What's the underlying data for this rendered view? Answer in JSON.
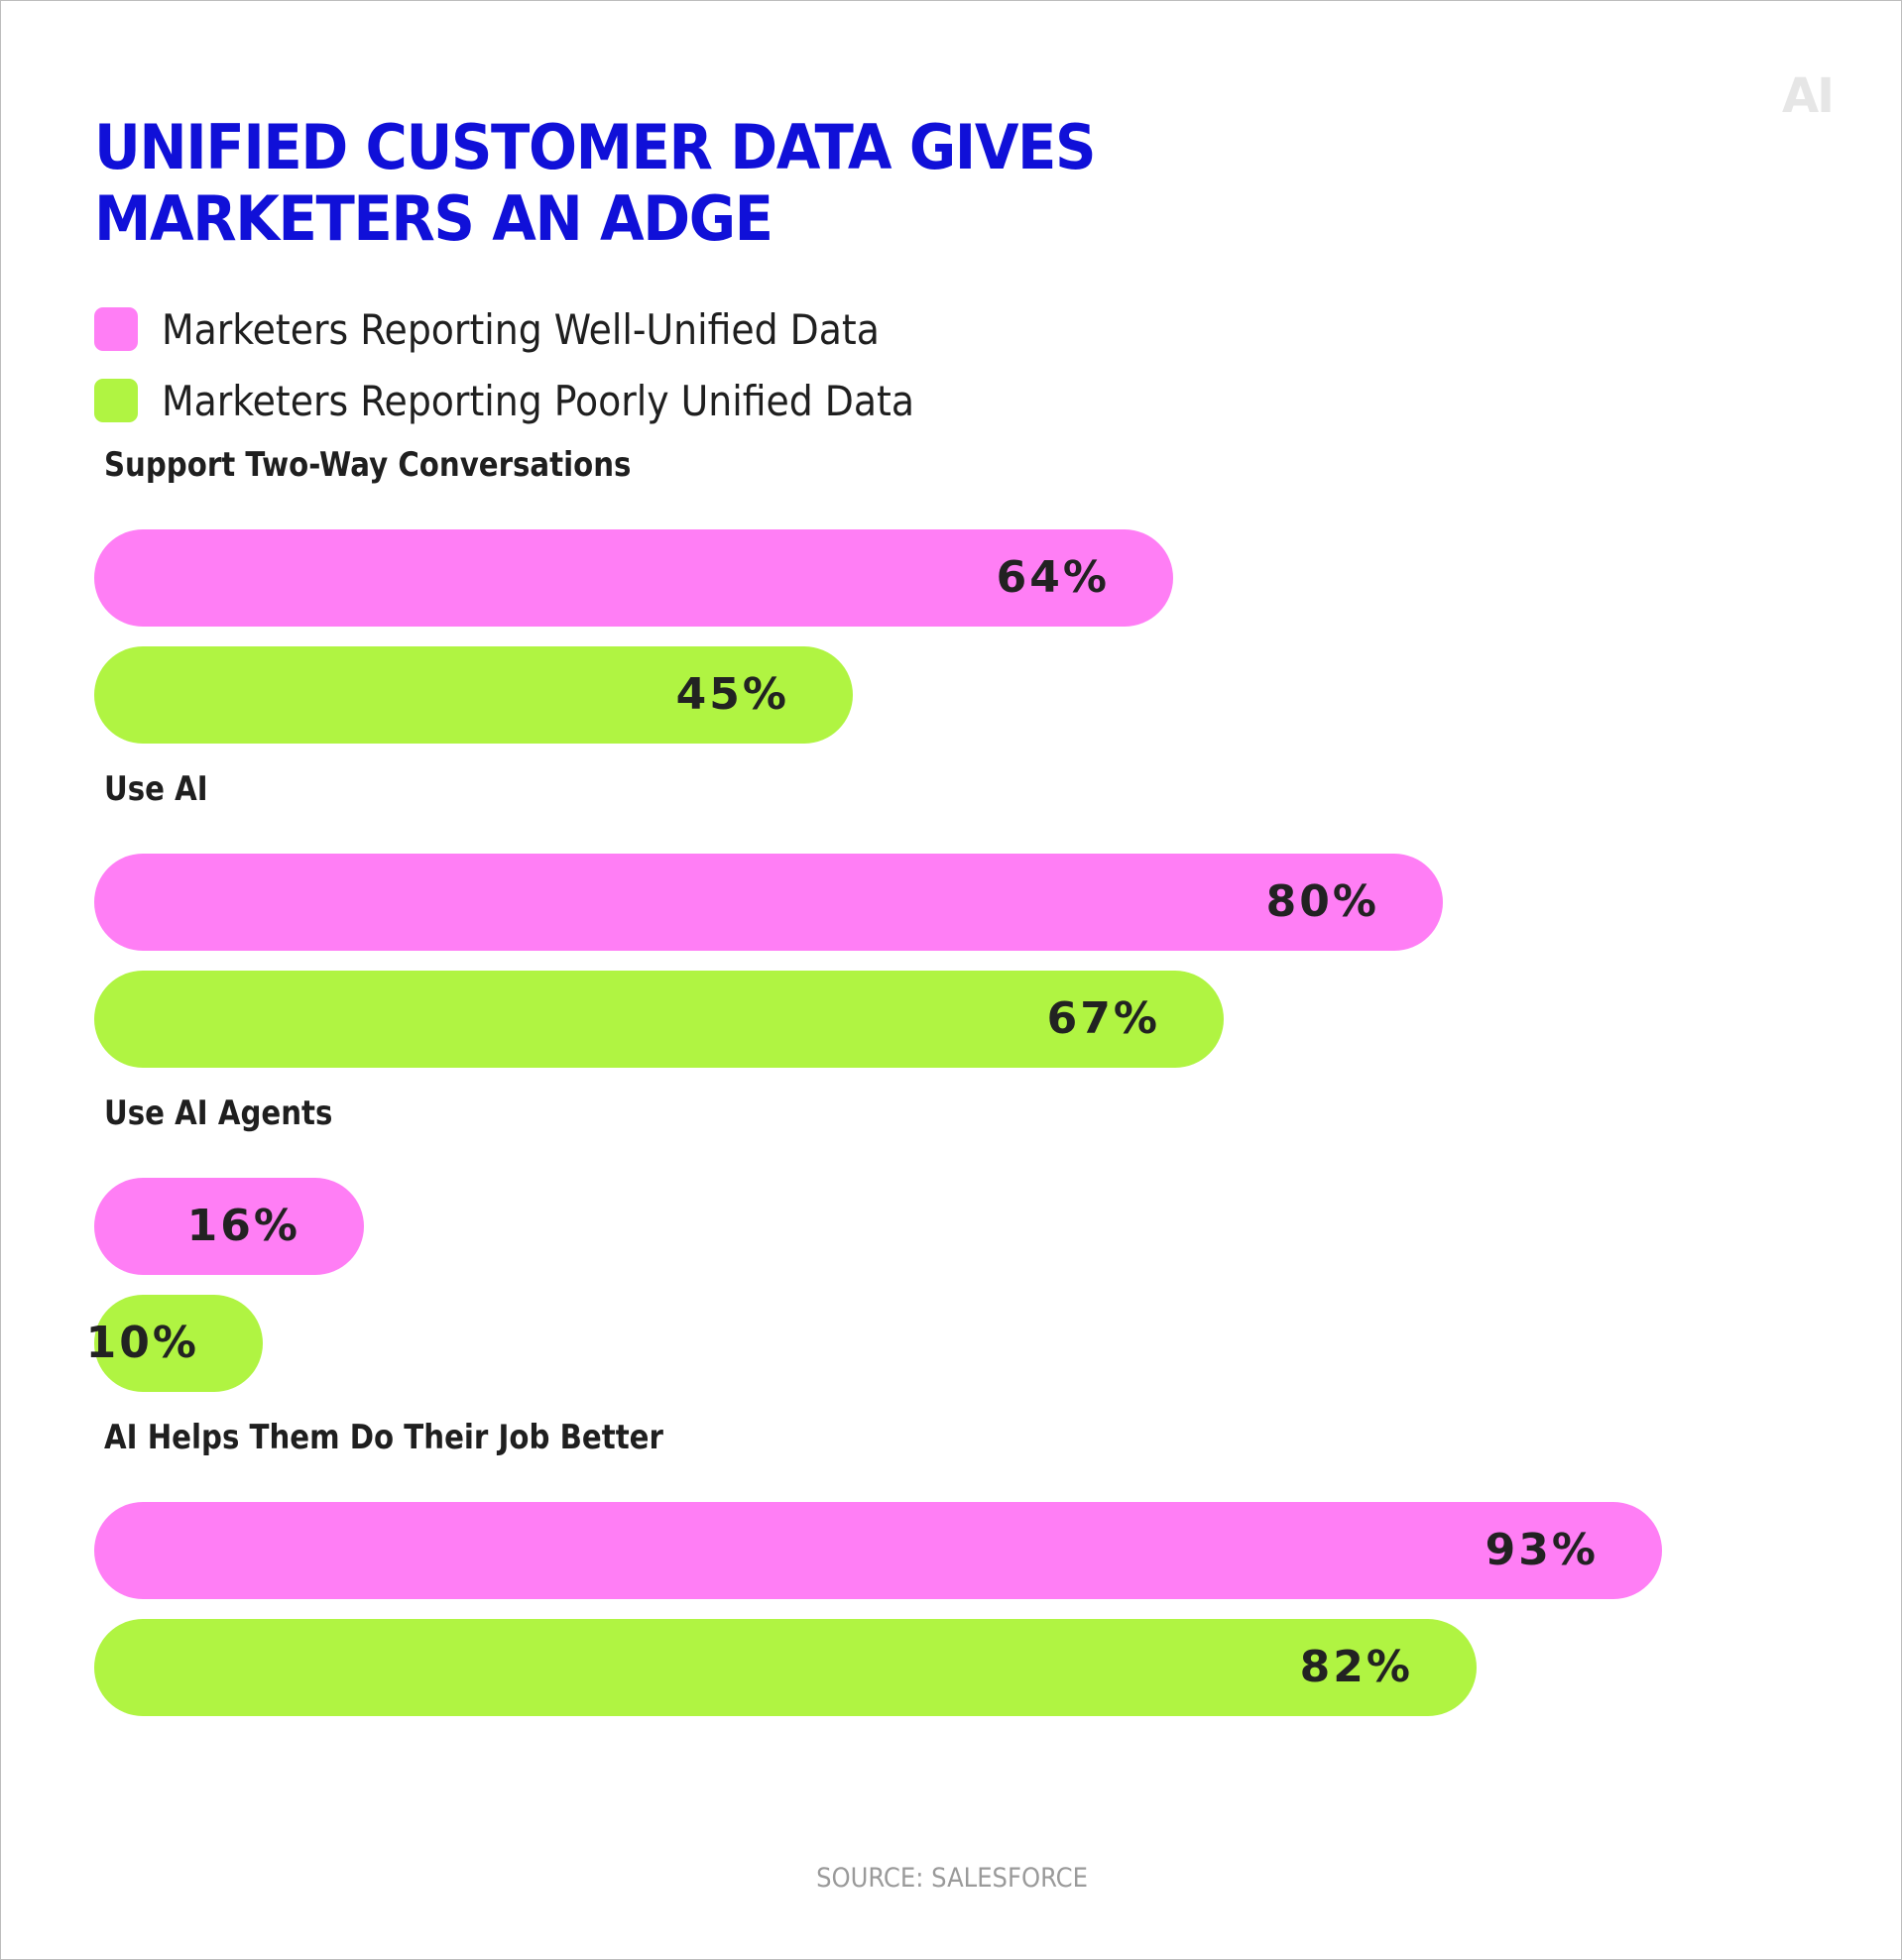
{
  "logo": "AI",
  "title_lines": [
    "UNIFIED CUSTOMER DATA GIVES",
    "MARKETERS AN ADGE"
  ],
  "colors": {
    "title": "#1010d8",
    "well": "#ff7ef5",
    "poorly": "#b0f442",
    "text": "#1f1f1f"
  },
  "chart_data": {
    "type": "bar",
    "orientation": "horizontal",
    "title": "UNIFIED CUSTOMER DATA GIVES MARKETERS AN ADGE",
    "unit": "%",
    "xlim": [
      0,
      100
    ],
    "grid": false,
    "legend_position": "top-left",
    "categories": [
      "Support Two-Way Conversations",
      "Use AI",
      "Use AI Agents",
      "AI Helps Them Do Their Job Better"
    ],
    "series": [
      {
        "name": "Marketers Reporting Well-Unified Data",
        "color": "#ff7ef5",
        "values": [
          64,
          80,
          16,
          93
        ],
        "labels": [
          "64%",
          "80%",
          "16%",
          "93%"
        ]
      },
      {
        "name": "Marketers Reporting Poorly Unified Data",
        "color": "#b0f442",
        "values": [
          45,
          67,
          10,
          82
        ],
        "labels": [
          "45%",
          "67%",
          "10%",
          "82%"
        ]
      }
    ]
  },
  "source": "SOURCE: SALESFORCE"
}
